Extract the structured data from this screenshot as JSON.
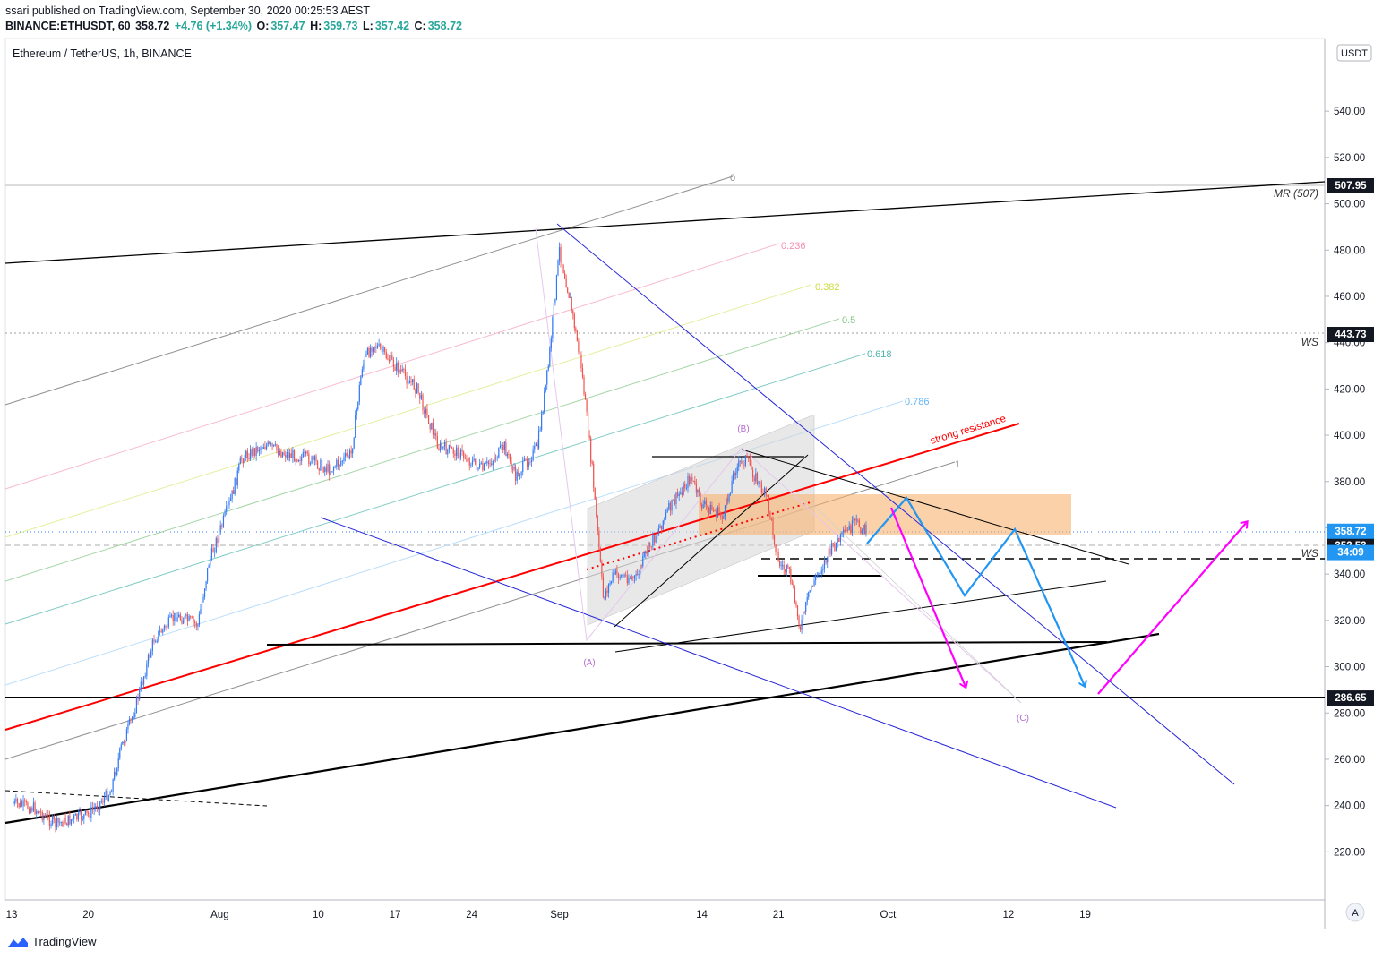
{
  "header": {
    "published": "ssari published on TradingView.com, September 30, 2020 00:25:53 AEST",
    "symbol": "BINANCE:ETHUSDT, 60",
    "last": "358.72",
    "change": "+4.76 (+1.34%)",
    "o_label": "O:",
    "o_value": "357.47",
    "h_label": "H:",
    "h_value": "359.73",
    "l_label": "L:",
    "l_value": "357.42",
    "c_label": "C:",
    "c_value": "358.72"
  },
  "footer": {
    "brand": "TradingView"
  },
  "colors": {
    "up": "#26a69a",
    "down": "#ef5350",
    "candle_up": "#3179f5",
    "candle_down": "#ef5350",
    "red_line": "#ff0000",
    "blue_line": "#2626d9",
    "magenta": "#ff00ff",
    "wave_blue": "#2196f3",
    "zone": "#f7b26f",
    "fib_0": "#9e9e9e",
    "fib_0236": "#f48fb1",
    "fib_0382": "#d4e157",
    "fib_05": "#81c784",
    "fib_0618": "#4db6ac",
    "fib_0786": "#64b5f6",
    "fib_1": "#9e9e9e",
    "pitchfork_label": "#b46fd0"
  },
  "chart_data": {
    "type": "candlestick",
    "title": "Ethereum / TetherUS, 1h, BINANCE",
    "currency_badge": "USDT",
    "scale_button": "A",
    "x_ticks": [
      "13",
      "20",
      "Aug",
      "10",
      "17",
      "24",
      "Sep",
      "14",
      "21",
      "Oct",
      "12",
      "19"
    ],
    "y_ticks": [
      "540.00",
      "520.00",
      "500.00",
      "480.00",
      "460.00",
      "440.00",
      "420.00",
      "400.00",
      "380.00",
      "360.00",
      "340.00",
      "320.00",
      "300.00",
      "280.00",
      "260.00",
      "240.00",
      "220.00"
    ],
    "ylim": [
      201,
      566
    ],
    "price_path": [
      {
        "x": "2020-07-13",
        "y": 241
      },
      {
        "x": "2020-07-15",
        "y": 239
      },
      {
        "x": "2020-07-17",
        "y": 232
      },
      {
        "x": "2020-07-20",
        "y": 236
      },
      {
        "x": "2020-07-22",
        "y": 246
      },
      {
        "x": "2020-07-23",
        "y": 265
      },
      {
        "x": "2020-07-24",
        "y": 278
      },
      {
        "x": "2020-07-26",
        "y": 312
      },
      {
        "x": "2020-07-28",
        "y": 322
      },
      {
        "x": "2020-07-30",
        "y": 318
      },
      {
        "x": "2020-07-31",
        "y": 345
      },
      {
        "x": "2020-08-02",
        "y": 372
      },
      {
        "x": "2020-08-03",
        "y": 390
      },
      {
        "x": "2020-08-05",
        "y": 396
      },
      {
        "x": "2020-08-07",
        "y": 392
      },
      {
        "x": "2020-08-09",
        "y": 390
      },
      {
        "x": "2020-08-11",
        "y": 385
      },
      {
        "x": "2020-08-13",
        "y": 392
      },
      {
        "x": "2020-08-14",
        "y": 430
      },
      {
        "x": "2020-08-15",
        "y": 440
      },
      {
        "x": "2020-08-17",
        "y": 430
      },
      {
        "x": "2020-08-19",
        "y": 420
      },
      {
        "x": "2020-08-21",
        "y": 395
      },
      {
        "x": "2020-08-23",
        "y": 392
      },
      {
        "x": "2020-08-25",
        "y": 385
      },
      {
        "x": "2020-08-27",
        "y": 395
      },
      {
        "x": "2020-08-28",
        "y": 382
      },
      {
        "x": "2020-08-30",
        "y": 395
      },
      {
        "x": "2020-08-31",
        "y": 430
      },
      {
        "x": "2020-09-01",
        "y": 480
      },
      {
        "x": "2020-09-02",
        "y": 458
      },
      {
        "x": "2020-09-03",
        "y": 430
      },
      {
        "x": "2020-09-04",
        "y": 385
      },
      {
        "x": "2020-09-05",
        "y": 330
      },
      {
        "x": "2020-09-06",
        "y": 340
      },
      {
        "x": "2020-09-08",
        "y": 338
      },
      {
        "x": "2020-09-09",
        "y": 350
      },
      {
        "x": "2020-09-11",
        "y": 368
      },
      {
        "x": "2020-09-13",
        "y": 382
      },
      {
        "x": "2020-09-14",
        "y": 370
      },
      {
        "x": "2020-09-16",
        "y": 365
      },
      {
        "x": "2020-09-17",
        "y": 385
      },
      {
        "x": "2020-09-18",
        "y": 390
      },
      {
        "x": "2020-09-20",
        "y": 372
      },
      {
        "x": "2020-09-21",
        "y": 345
      },
      {
        "x": "2020-09-22",
        "y": 340
      },
      {
        "x": "2020-09-23",
        "y": 317
      },
      {
        "x": "2020-09-24",
        "y": 335
      },
      {
        "x": "2020-09-26",
        "y": 352
      },
      {
        "x": "2020-09-28",
        "y": 362
      },
      {
        "x": "2020-09-29",
        "y": 358.72
      }
    ],
    "price_labels": [
      {
        "text": "507.95",
        "value": 507.95,
        "style": "black"
      },
      {
        "text": "443.73",
        "value": 443.73,
        "style": "black"
      },
      {
        "text": "352.53",
        "value": 352.53,
        "style": "black"
      },
      {
        "text": "358.72",
        "value": 358.72,
        "style": "blue"
      },
      {
        "text": "34:09",
        "value": 349.5,
        "style": "blue"
      },
      {
        "text": "286.65",
        "value": 286.65,
        "style": "black"
      }
    ],
    "level_labels": [
      {
        "text": "MR (507)",
        "value": 507.95
      },
      {
        "text": "WS",
        "value": 443.73
      },
      {
        "text": "WS",
        "value": 352.53
      }
    ],
    "fib_labels": [
      "0",
      "0.236",
      "0.382",
      "0.5",
      "0.618",
      "0.786",
      "1"
    ],
    "wave_labels": [
      "(A)",
      "(B)",
      "(C)"
    ],
    "annotation": "strong resistance"
  }
}
